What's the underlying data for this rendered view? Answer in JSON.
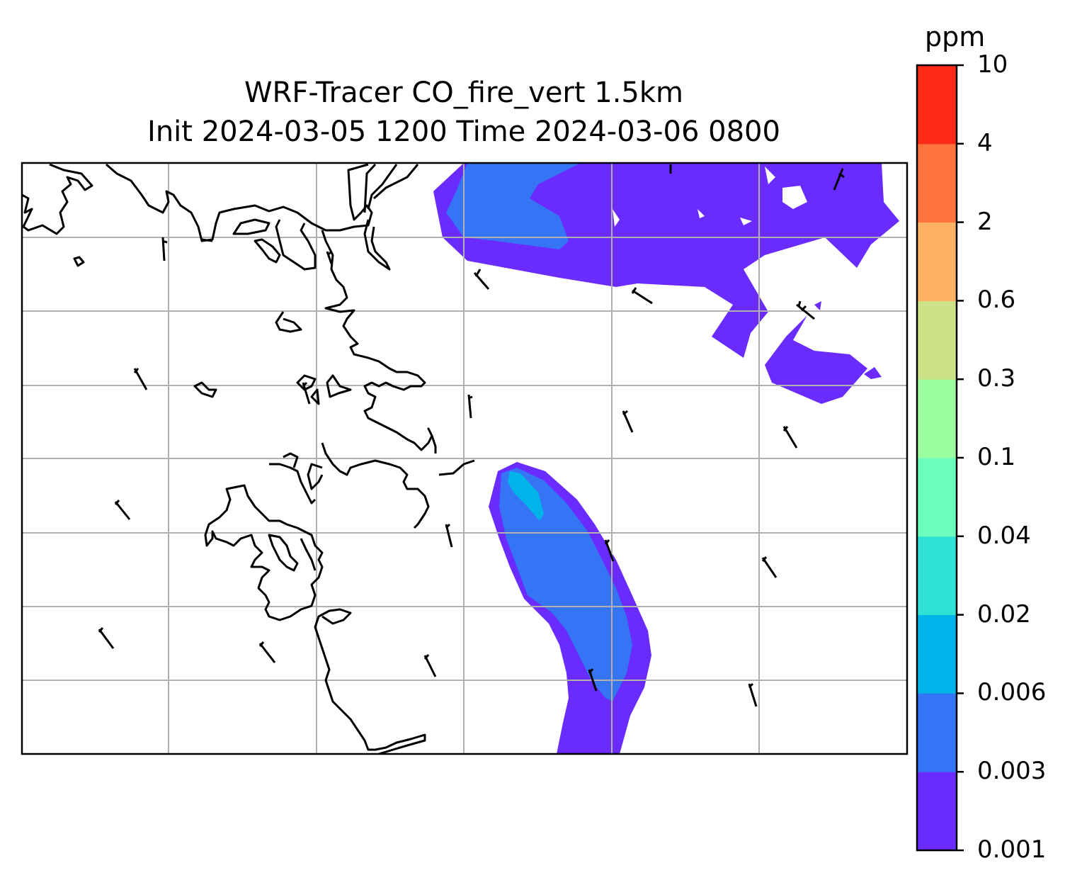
{
  "title": {
    "line1": "WRF-Tracer CO_fire_vert 1.5km",
    "line2": "Init 2024-03-05 1200 Time 2024-03-06 0800"
  },
  "colorbar": {
    "unit": "ppm",
    "levels": [
      "0.001",
      "0.003",
      "0.006",
      "0.02",
      "0.04",
      "0.1",
      "0.3",
      "0.6",
      "2",
      "4",
      "10"
    ],
    "colors": [
      "#6a2bff",
      "#3575f5",
      "#00b4ea",
      "#2fe0d5",
      "#6bfebd",
      "#9cfe9f",
      "#cde186",
      "#fdb162",
      "#fd723d",
      "#fd2a18"
    ]
  },
  "map": {
    "gridlines": true,
    "coastline_color": "#000000",
    "plume_colors": {
      "level_0.001": "#6a2bff",
      "level_0.003": "#3575f5",
      "level_0.006": "#00b4ea"
    },
    "wind_barbs": true
  }
}
